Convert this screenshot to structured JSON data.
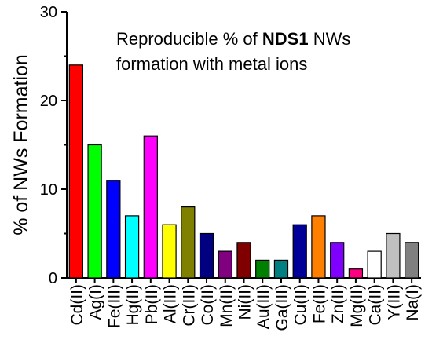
{
  "chart_data": {
    "type": "bar",
    "title_parts": [
      "Reproducible % of ",
      "NDS1",
      " NWs",
      "formation with metal ions"
    ],
    "ylabel": "% of NWs Formation",
    "xlabel": "",
    "ylim": [
      0,
      30
    ],
    "yticks": [
      "0",
      "10",
      "20",
      "30"
    ],
    "grid": false,
    "categories": [
      "Cd(II)",
      "Ag(I)",
      "Fe(III)",
      "Hg(II)",
      "Pb(II)",
      "Al(III)",
      "Cr(III)",
      "Co(II)",
      "Mn(II)",
      "Ni(II)",
      "Au(III)",
      "Ga(III)",
      "Cu(II)",
      "Fe(II)",
      "Zn(II)",
      "Mg(II)",
      "Ca(II)",
      "Y(III)",
      "Na(I)"
    ],
    "values": [
      24,
      15,
      11,
      7,
      16,
      6,
      8,
      5,
      3,
      4,
      2,
      2,
      6,
      7,
      4,
      1,
      3,
      5,
      4
    ],
    "colors": [
      "#ff0000",
      "#00ff00",
      "#0000ff",
      "#00ffff",
      "#ff00ff",
      "#ffff00",
      "#808000",
      "#000080",
      "#800080",
      "#800000",
      "#008000",
      "#008080",
      "#000099",
      "#ff8000",
      "#8000ff",
      "#ff0080",
      "#ffffff",
      "#c0c0c0",
      "#808080"
    ]
  }
}
